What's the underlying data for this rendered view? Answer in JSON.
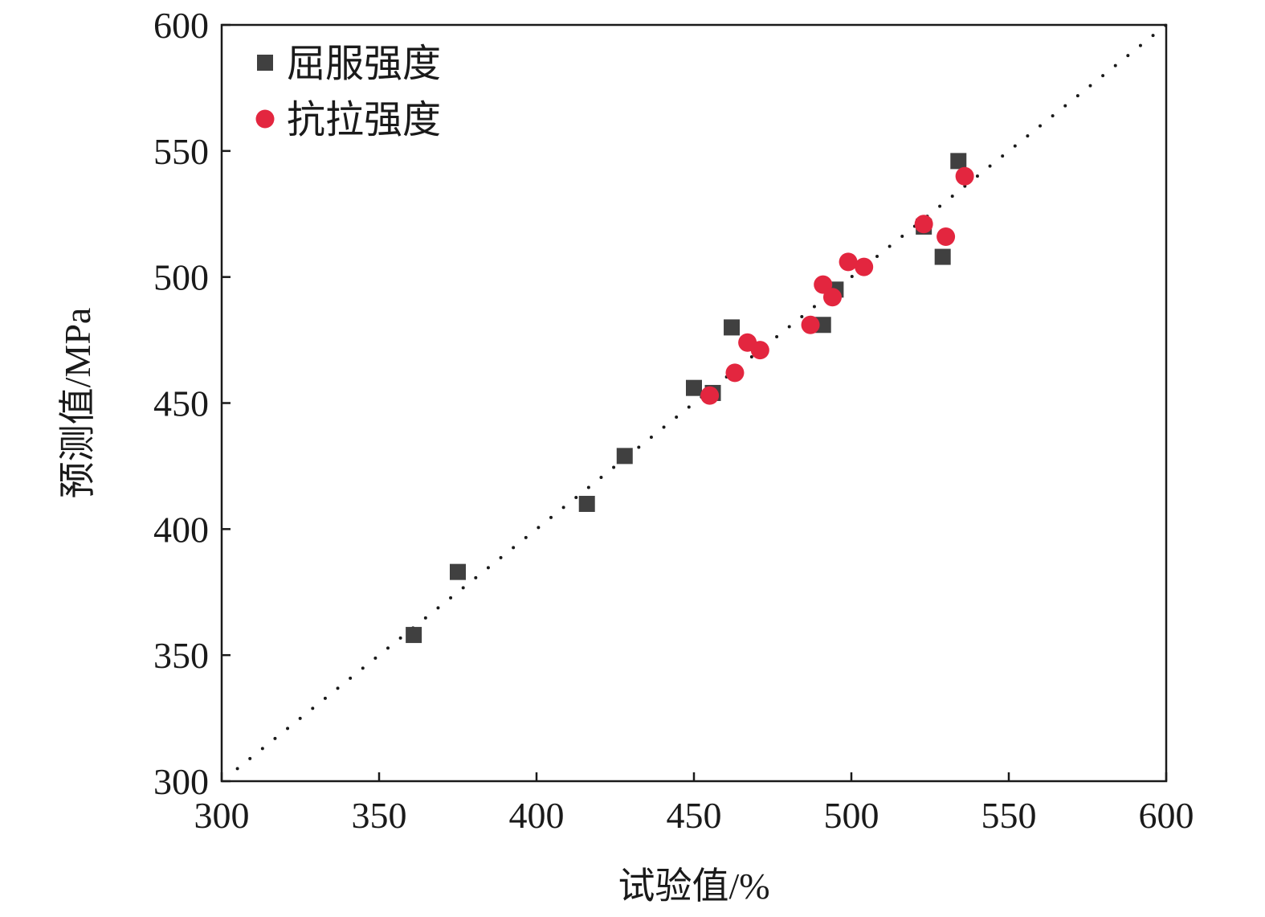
{
  "chart_data": {
    "type": "scatter",
    "title": "",
    "xlabel": "试验值/%",
    "ylabel": "预测值/MPa",
    "xlim": [
      300,
      600
    ],
    "ylim": [
      300,
      600
    ],
    "xticks": [
      300,
      350,
      400,
      450,
      500,
      550,
      600
    ],
    "yticks": [
      300,
      350,
      400,
      450,
      500,
      550,
      600
    ],
    "grid": false,
    "legend_position": "top-left",
    "reference_line": {
      "style": "dotted",
      "from": [
        305,
        305
      ],
      "to": [
        600,
        600
      ],
      "color": "#1a1a1a"
    },
    "series": [
      {
        "name": "屈服强度",
        "marker": "square",
        "color": "#404040",
        "points": [
          [
            361,
            358
          ],
          [
            375,
            383
          ],
          [
            416,
            410
          ],
          [
            428,
            429
          ],
          [
            450,
            456
          ],
          [
            456,
            454
          ],
          [
            462,
            480
          ],
          [
            491,
            481
          ],
          [
            495,
            495
          ],
          [
            523,
            520
          ],
          [
            529,
            508
          ],
          [
            534,
            546
          ]
        ]
      },
      {
        "name": "抗拉强度",
        "marker": "circle",
        "color": "#e3263f",
        "points": [
          [
            455,
            453
          ],
          [
            463,
            462
          ],
          [
            467,
            474
          ],
          [
            471,
            471
          ],
          [
            487,
            481
          ],
          [
            491,
            497
          ],
          [
            494,
            492
          ],
          [
            499,
            506
          ],
          [
            504,
            504
          ],
          [
            523,
            521
          ],
          [
            530,
            516
          ],
          [
            536,
            540
          ]
        ]
      }
    ]
  }
}
